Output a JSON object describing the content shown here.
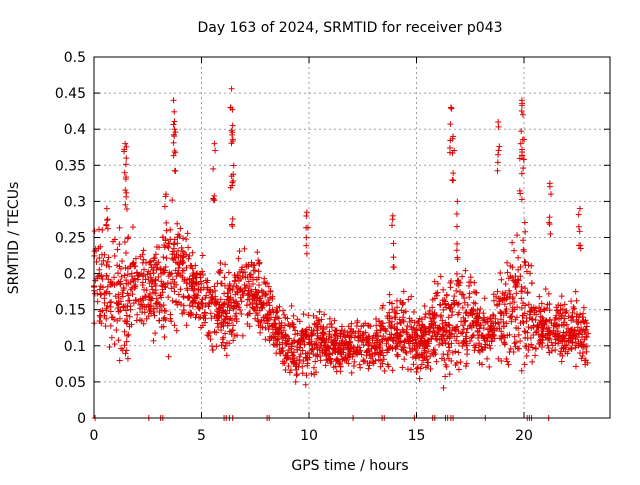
{
  "chart_data": {
    "type": "scatter",
    "title": "Day 163 of 2024, SRMTID for receiver p043",
    "xlabel": "GPS time / hours",
    "ylabel": "SRMTID / TECUs",
    "xlim": [
      0,
      24
    ],
    "ylim": [
      0,
      0.5
    ],
    "x_ticks": [
      0,
      5,
      10,
      15,
      20
    ],
    "x_tick_labels": [
      "0",
      "5",
      "10",
      "15",
      "20"
    ],
    "y_ticks": [
      0,
      0.05,
      0.1,
      0.15,
      0.2,
      0.25,
      0.3,
      0.35,
      0.4,
      0.45,
      0.5
    ],
    "y_tick_labels": [
      "0",
      "0.05",
      "0.1",
      "0.15",
      "0.2",
      "0.25",
      "0.3",
      "0.35",
      "0.4",
      "0.45",
      "0.5"
    ],
    "grid": true,
    "legend": "none",
    "marker": "plus",
    "color": "#e00000",
    "series": [
      {
        "name": "SRMTID p043",
        "envelope_hours": [
          0,
          0.5,
          1,
          1.5,
          2,
          2.5,
          3,
          3.5,
          4,
          4.5,
          5,
          5.5,
          6,
          6.5,
          7,
          7.5,
          8,
          8.5,
          9,
          9.5,
          10,
          10.5,
          11,
          11.5,
          12,
          12.5,
          13,
          13.5,
          14,
          14.5,
          15,
          15.5,
          16,
          16.5,
          17,
          17.5,
          18,
          18.5,
          19,
          19.5,
          20,
          20.5,
          21,
          21.5,
          22,
          22.5,
          23
        ],
        "envelope_center": [
          0.2,
          0.18,
          0.17,
          0.16,
          0.19,
          0.17,
          0.18,
          0.2,
          0.2,
          0.18,
          0.17,
          0.15,
          0.15,
          0.16,
          0.18,
          0.18,
          0.15,
          0.13,
          0.1,
          0.1,
          0.1,
          0.11,
          0.1,
          0.1,
          0.1,
          0.1,
          0.1,
          0.11,
          0.12,
          0.12,
          0.1,
          0.11,
          0.13,
          0.13,
          0.14,
          0.14,
          0.12,
          0.12,
          0.14,
          0.16,
          0.17,
          0.13,
          0.12,
          0.12,
          0.12,
          0.12,
          0.12
        ],
        "envelope_spread": [
          0.05,
          0.07,
          0.07,
          0.09,
          0.05,
          0.05,
          0.06,
          0.08,
          0.06,
          0.06,
          0.05,
          0.05,
          0.05,
          0.05,
          0.05,
          0.05,
          0.04,
          0.04,
          0.04,
          0.04,
          0.04,
          0.03,
          0.03,
          0.03,
          0.03,
          0.03,
          0.03,
          0.04,
          0.05,
          0.05,
          0.04,
          0.04,
          0.05,
          0.07,
          0.07,
          0.05,
          0.04,
          0.04,
          0.06,
          0.09,
          0.09,
          0.04,
          0.04,
          0.04,
          0.04,
          0.04,
          0.04
        ],
        "spikes": [
          {
            "x": 0.6,
            "y": 0.29
          },
          {
            "x": 1.45,
            "y": 0.38
          },
          {
            "x": 1.5,
            "y": 0.36
          },
          {
            "x": 3.35,
            "y": 0.31
          },
          {
            "x": 3.7,
            "y": 0.44
          },
          {
            "x": 3.75,
            "y": 0.4
          },
          {
            "x": 5.6,
            "y": 0.38
          },
          {
            "x": 6.4,
            "y": 0.456
          },
          {
            "x": 6.45,
            "y": 0.405
          },
          {
            "x": 6.4,
            "y": 0.335
          },
          {
            "x": 9.9,
            "y": 0.285
          },
          {
            "x": 13.9,
            "y": 0.28
          },
          {
            "x": 16.6,
            "y": 0.43
          },
          {
            "x": 16.7,
            "y": 0.39
          },
          {
            "x": 16.9,
            "y": 0.3
          },
          {
            "x": 18.8,
            "y": 0.41
          },
          {
            "x": 19.9,
            "y": 0.44
          },
          {
            "x": 19.95,
            "y": 0.42
          },
          {
            "x": 19.85,
            "y": 0.38
          },
          {
            "x": 21.2,
            "y": 0.325
          },
          {
            "x": 22.6,
            "y": 0.29
          }
        ],
        "zero_points_x": [
          0.05,
          2.55,
          3.1,
          3.2,
          6.05,
          6.15,
          6.3,
          6.45,
          8.05,
          8.15,
          12.05,
          13.4,
          13.5,
          14.9,
          15.75,
          15.85,
          16.35,
          16.45,
          16.6,
          16.7,
          18.2,
          20.15,
          20.25,
          20.35,
          21.15
        ]
      }
    ]
  }
}
